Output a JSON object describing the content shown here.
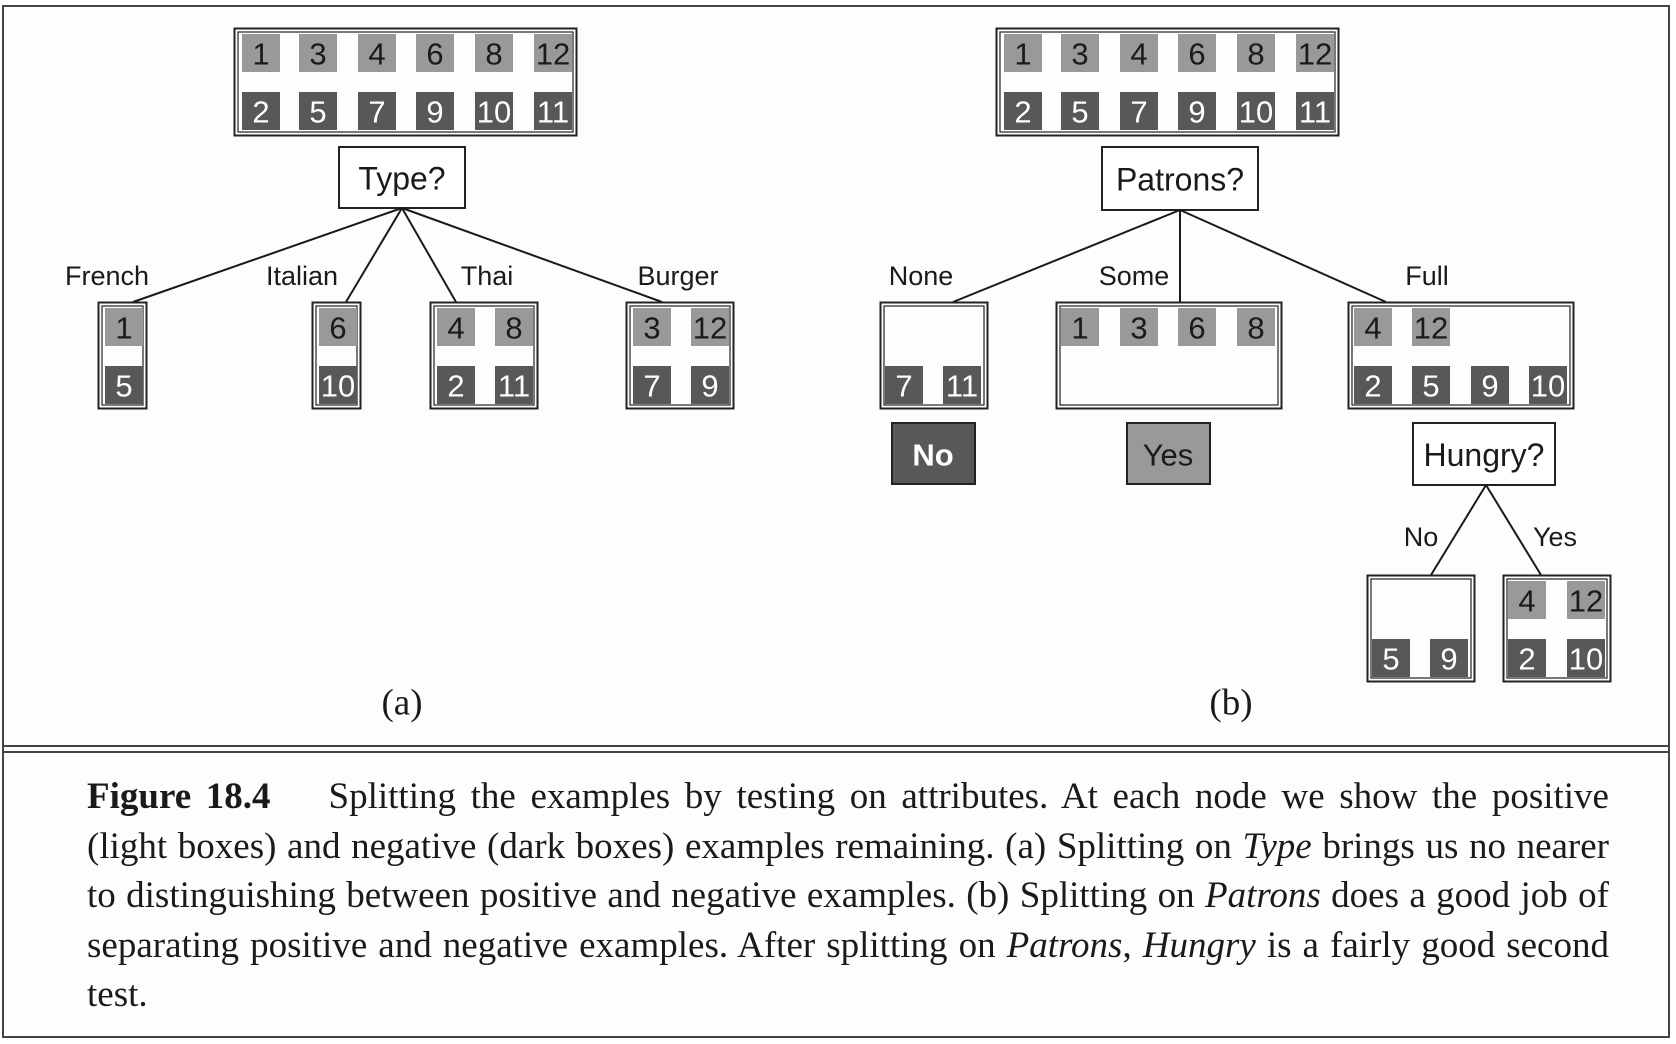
{
  "colors": {
    "positive": "#999999",
    "negative": "#585858",
    "frame": "#444444",
    "line": "#1a1a1a",
    "background": "#fdfdfc"
  },
  "panel_a": {
    "label": "(a)",
    "root": {
      "positive": [
        "1",
        "3",
        "4",
        "6",
        "8",
        "12"
      ],
      "negative": [
        "2",
        "5",
        "7",
        "9",
        "10",
        "11"
      ]
    },
    "test": "Type?",
    "branches": [
      {
        "label": "French",
        "positive": [
          "1"
        ],
        "negative": [
          "5"
        ]
      },
      {
        "label": "Italian",
        "positive": [
          "6"
        ],
        "negative": [
          "10"
        ]
      },
      {
        "label": "Thai",
        "positive": [
          "4",
          "8"
        ],
        "negative": [
          "2",
          "11"
        ]
      },
      {
        "label": "Burger",
        "positive": [
          "3",
          "12"
        ],
        "negative": [
          "7",
          "9"
        ]
      }
    ]
  },
  "panel_b": {
    "label": "(b)",
    "root": {
      "positive": [
        "1",
        "3",
        "4",
        "6",
        "8",
        "12"
      ],
      "negative": [
        "2",
        "5",
        "7",
        "9",
        "10",
        "11"
      ]
    },
    "test": "Patrons?",
    "branches": [
      {
        "label": "None",
        "positive": [],
        "negative": [
          "7",
          "11"
        ],
        "leaf": "No"
      },
      {
        "label": "Some",
        "positive": [
          "1",
          "3",
          "6",
          "8"
        ],
        "negative": [],
        "leaf": "Yes"
      },
      {
        "label": "Full",
        "positive": [
          "4",
          "12"
        ],
        "negative": [
          "2",
          "5",
          "9",
          "10"
        ],
        "subtest": "Hungry?"
      }
    ],
    "sub_branches": [
      {
        "label": "No",
        "positive": [],
        "negative": [
          "5",
          "9"
        ]
      },
      {
        "label": "Yes",
        "positive": [
          "4",
          "12"
        ],
        "negative": [
          "2",
          "10"
        ]
      }
    ]
  },
  "caption": {
    "figure_label": "Figure 18.4",
    "parts": [
      {
        "t": "Splitting the examples by testing on attributes.  At each node we show the positive (light boxes) and negative (dark boxes) examples remaining.  (a) Splitting on ",
        "i": false
      },
      {
        "t": "Type",
        "i": true
      },
      {
        "t": " brings us no nearer to distinguishing between positive and negative examples.  (b) Splitting on ",
        "i": false
      },
      {
        "t": "Patrons",
        "i": true
      },
      {
        "t": " does a good job of separating positive and negative examples.  After splitting on ",
        "i": false
      },
      {
        "t": "Patrons",
        "i": true
      },
      {
        "t": ", ",
        "i": false
      },
      {
        "t": "Hungry",
        "i": true
      },
      {
        "t": " is a fairly good second test.",
        "i": false
      }
    ]
  }
}
